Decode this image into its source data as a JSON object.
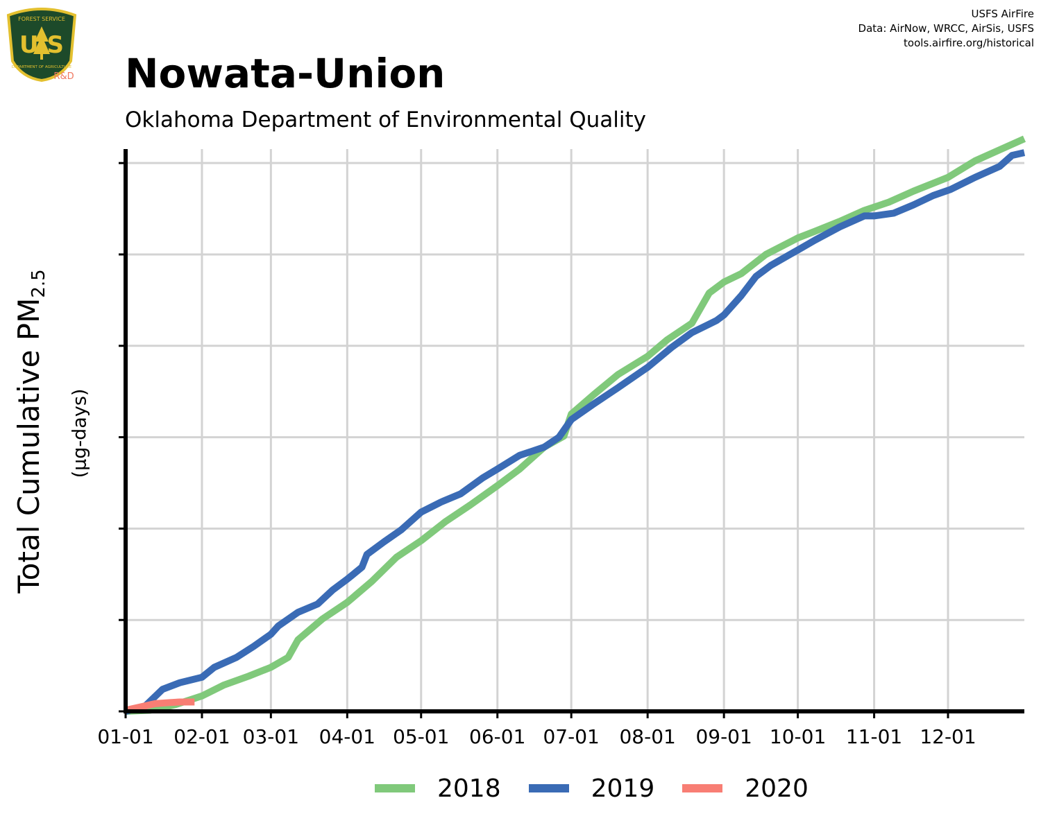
{
  "header": {
    "title": "Nowata-Union",
    "subtitle": "Oklahoma Department of Environmental Quality",
    "credits": [
      "USFS AirFire",
      "Data: AirNow, WRCC, AirSis, USFS",
      "tools.airfire.org/historical"
    ]
  },
  "logo": {
    "top_text": "FOREST SERVICE",
    "letters": "U S",
    "bottom_text": "DEPARTMENT OF AGRICULTURE",
    "badge": "R&D",
    "colors": {
      "shield": "#1d4a2a",
      "trim": "#e3c02f",
      "badge": "#f07860"
    }
  },
  "chart_data": {
    "type": "line",
    "title": "Nowata-Union",
    "subtitle": "Oklahoma Department of Environmental Quality",
    "ylabel": "Total Cumulative PM",
    "ylabel_sub": "2.5",
    "yunits": "(µg-days)",
    "xlabel": "",
    "x_ticks": [
      "01-01",
      "02-01",
      "03-01",
      "04-01",
      "05-01",
      "06-01",
      "07-01",
      "08-01",
      "09-01",
      "10-01",
      "11-01",
      "12-01"
    ],
    "x_tick_days": [
      0,
      31,
      59,
      90,
      120,
      151,
      181,
      212,
      243,
      273,
      304,
      334
    ],
    "xlim_days": [
      0,
      365
    ],
    "ylim": [
      0,
      1.0
    ],
    "y_ticks": [
      0,
      0.166,
      0.332,
      0.498,
      0.664,
      0.83,
      0.996
    ],
    "y_tick_labels_shown": false,
    "grid": true,
    "legend_position": "bottom",
    "series": [
      {
        "name": "2018",
        "color": "#80c97b",
        "points": [
          [
            0,
            0
          ],
          [
            10,
            0.002
          ],
          [
            20,
            0.012
          ],
          [
            31,
            0.028
          ],
          [
            40,
            0.048
          ],
          [
            50,
            0.064
          ],
          [
            59,
            0.08
          ],
          [
            66,
            0.098
          ],
          [
            70,
            0.13
          ],
          [
            80,
            0.168
          ],
          [
            90,
            0.198
          ],
          [
            100,
            0.236
          ],
          [
            110,
            0.28
          ],
          [
            120,
            0.31
          ],
          [
            130,
            0.345
          ],
          [
            140,
            0.375
          ],
          [
            151,
            0.41
          ],
          [
            160,
            0.44
          ],
          [
            170,
            0.48
          ],
          [
            178,
            0.5
          ],
          [
            181,
            0.54
          ],
          [
            190,
            0.575
          ],
          [
            200,
            0.612
          ],
          [
            212,
            0.645
          ],
          [
            220,
            0.675
          ],
          [
            230,
            0.705
          ],
          [
            237,
            0.76
          ],
          [
            243,
            0.78
          ],
          [
            250,
            0.795
          ],
          [
            260,
            0.83
          ],
          [
            273,
            0.86
          ],
          [
            280,
            0.872
          ],
          [
            290,
            0.89
          ],
          [
            300,
            0.91
          ],
          [
            310,
            0.925
          ],
          [
            320,
            0.945
          ],
          [
            334,
            0.97
          ],
          [
            345,
            1.0
          ],
          [
            355,
            1.02
          ],
          [
            365,
            1.04
          ]
        ]
      },
      {
        "name": "2019",
        "color": "#3a6bb5",
        "points": [
          [
            0,
            0
          ],
          [
            8,
            0.01
          ],
          [
            15,
            0.04
          ],
          [
            22,
            0.052
          ],
          [
            31,
            0.062
          ],
          [
            36,
            0.08
          ],
          [
            45,
            0.098
          ],
          [
            52,
            0.118
          ],
          [
            59,
            0.14
          ],
          [
            62,
            0.155
          ],
          [
            70,
            0.18
          ],
          [
            78,
            0.195
          ],
          [
            84,
            0.22
          ],
          [
            90,
            0.24
          ],
          [
            96,
            0.262
          ],
          [
            98,
            0.285
          ],
          [
            105,
            0.308
          ],
          [
            112,
            0.33
          ],
          [
            120,
            0.362
          ],
          [
            128,
            0.38
          ],
          [
            136,
            0.395
          ],
          [
            145,
            0.424
          ],
          [
            151,
            0.44
          ],
          [
            160,
            0.465
          ],
          [
            170,
            0.48
          ],
          [
            176,
            0.498
          ],
          [
            181,
            0.53
          ],
          [
            190,
            0.558
          ],
          [
            200,
            0.588
          ],
          [
            212,
            0.625
          ],
          [
            222,
            0.662
          ],
          [
            230,
            0.688
          ],
          [
            240,
            0.71
          ],
          [
            243,
            0.72
          ],
          [
            250,
            0.755
          ],
          [
            256,
            0.79
          ],
          [
            262,
            0.81
          ],
          [
            273,
            0.838
          ],
          [
            280,
            0.856
          ],
          [
            290,
            0.88
          ],
          [
            300,
            0.9
          ],
          [
            304,
            0.9
          ],
          [
            312,
            0.905
          ],
          [
            320,
            0.92
          ],
          [
            328,
            0.937
          ],
          [
            335,
            0.948
          ],
          [
            345,
            0.97
          ],
          [
            355,
            0.99
          ],
          [
            360,
            1.01
          ],
          [
            365,
            1.015
          ]
        ]
      },
      {
        "name": "2020",
        "color": "#f87e74",
        "points": [
          [
            0,
            0.002
          ],
          [
            6,
            0.008
          ],
          [
            12,
            0.014
          ],
          [
            18,
            0.016
          ],
          [
            22,
            0.017
          ],
          [
            28,
            0.017
          ]
        ]
      }
    ]
  }
}
